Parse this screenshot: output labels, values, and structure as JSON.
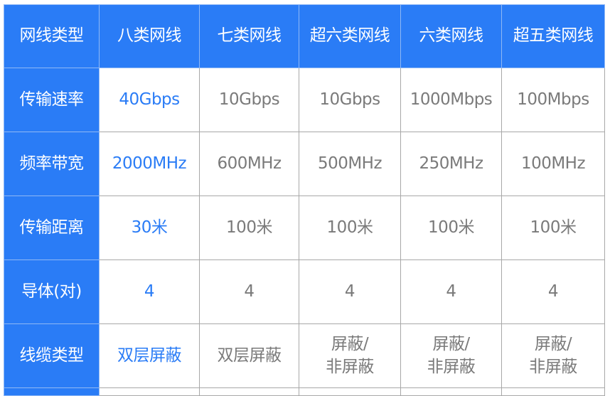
{
  "colors": {
    "accent": "#2a7cf6",
    "text": "#7a7a7a",
    "border": "#a8a8a8"
  },
  "header": [
    "网线类型",
    "八类网线",
    "七类网线",
    "超六类网线",
    "六类网线",
    "超五类网线"
  ],
  "rows": [
    {
      "label": "传输速率",
      "values": [
        "40Gbps",
        "10Gbps",
        "10Gbps",
        "1000Mbps",
        "100Mbps"
      ]
    },
    {
      "label": "频率带宽",
      "values": [
        "2000MHz",
        "600MHz",
        "500MHz",
        "250MHz",
        "100MHz"
      ]
    },
    {
      "label": "传输距离",
      "values": [
        "30米",
        "100米",
        "100米",
        "100米",
        "100米"
      ]
    },
    {
      "label": "导体(对)",
      "values": [
        "4",
        "4",
        "4",
        "4",
        "4"
      ]
    },
    {
      "label": "线缆类型",
      "values": [
        "双层屏蔽",
        "双层屏蔽",
        "屏蔽/\n非屏蔽",
        "屏蔽/\n非屏蔽",
        "屏蔽/\n非屏蔽"
      ]
    }
  ]
}
